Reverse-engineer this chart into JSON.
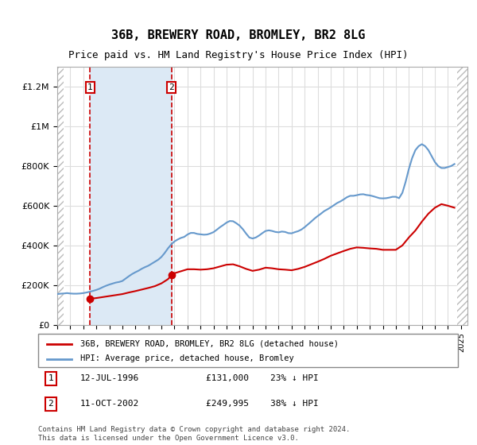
{
  "title": "36B, BREWERY ROAD, BROMLEY, BR2 8LG",
  "subtitle": "Price paid vs. HM Land Registry's House Price Index (HPI)",
  "title_fontsize": 11,
  "subtitle_fontsize": 9,
  "ylabel": "",
  "xlabel": "",
  "ylim": [
    0,
    1300000
  ],
  "xlim_start": 1994.0,
  "xlim_end": 2025.5,
  "yticks": [
    0,
    200000,
    400000,
    600000,
    800000,
    1000000,
    1200000
  ],
  "ytick_labels": [
    "£0",
    "£200K",
    "£400K",
    "£600K",
    "£800K",
    "£1M",
    "£1.2M"
  ],
  "xticks": [
    1994,
    1995,
    1996,
    1997,
    1998,
    1999,
    2000,
    2001,
    2002,
    2003,
    2004,
    2005,
    2006,
    2007,
    2008,
    2009,
    2010,
    2011,
    2012,
    2013,
    2014,
    2015,
    2016,
    2017,
    2018,
    2019,
    2020,
    2021,
    2022,
    2023,
    2024,
    2025
  ],
  "hatch_color": "#aaaaaa",
  "shaded_region_color": "#dce9f5",
  "grid_color": "#dddddd",
  "purchase1_year": 1996.53,
  "purchase1_price": 131000,
  "purchase1_label": "1",
  "purchase1_date": "12-JUL-1996",
  "purchase1_info": "£131,000    23% ↓ HPI",
  "purchase2_year": 2002.78,
  "purchase2_price": 249995,
  "purchase2_label": "2",
  "purchase2_date": "11-OCT-2002",
  "purchase2_info": "£249,995    38% ↓ HPI",
  "red_line_color": "#cc0000",
  "blue_line_color": "#6699cc",
  "legend_label_red": "36B, BREWERY ROAD, BROMLEY, BR2 8LG (detached house)",
  "legend_label_blue": "HPI: Average price, detached house, Bromley",
  "footer_text": "Contains HM Land Registry data © Crown copyright and database right 2024.\nThis data is licensed under the Open Government Licence v3.0.",
  "hpi_data": {
    "years": [
      1994.0,
      1994.25,
      1994.5,
      1994.75,
      1995.0,
      1995.25,
      1995.5,
      1995.75,
      1996.0,
      1996.25,
      1996.5,
      1996.75,
      1997.0,
      1997.25,
      1997.5,
      1997.75,
      1998.0,
      1998.25,
      1998.5,
      1998.75,
      1999.0,
      1999.25,
      1999.5,
      1999.75,
      2000.0,
      2000.25,
      2000.5,
      2000.75,
      2001.0,
      2001.25,
      2001.5,
      2001.75,
      2002.0,
      2002.25,
      2002.5,
      2002.75,
      2003.0,
      2003.25,
      2003.5,
      2003.75,
      2004.0,
      2004.25,
      2004.5,
      2004.75,
      2005.0,
      2005.25,
      2005.5,
      2005.75,
      2006.0,
      2006.25,
      2006.5,
      2006.75,
      2007.0,
      2007.25,
      2007.5,
      2007.75,
      2008.0,
      2008.25,
      2008.5,
      2008.75,
      2009.0,
      2009.25,
      2009.5,
      2009.75,
      2010.0,
      2010.25,
      2010.5,
      2010.75,
      2011.0,
      2011.25,
      2011.5,
      2011.75,
      2012.0,
      2012.25,
      2012.5,
      2012.75,
      2013.0,
      2013.25,
      2013.5,
      2013.75,
      2014.0,
      2014.25,
      2014.5,
      2014.75,
      2015.0,
      2015.25,
      2015.5,
      2015.75,
      2016.0,
      2016.25,
      2016.5,
      2016.75,
      2017.0,
      2017.25,
      2017.5,
      2017.75,
      2018.0,
      2018.25,
      2018.5,
      2018.75,
      2019.0,
      2019.25,
      2019.5,
      2019.75,
      2020.0,
      2020.25,
      2020.5,
      2020.75,
      2021.0,
      2021.25,
      2021.5,
      2021.75,
      2022.0,
      2022.25,
      2022.5,
      2022.75,
      2023.0,
      2023.25,
      2023.5,
      2023.75,
      2024.0,
      2024.25,
      2024.5
    ],
    "values": [
      155000,
      157000,
      158000,
      160000,
      158000,
      157000,
      157000,
      158000,
      160000,
      163000,
      167000,
      171000,
      176000,
      182000,
      190000,
      197000,
      203000,
      208000,
      213000,
      216000,
      221000,
      233000,
      245000,
      256000,
      265000,
      273000,
      283000,
      291000,
      298000,
      308000,
      318000,
      328000,
      342000,
      362000,
      385000,
      405000,
      420000,
      430000,
      438000,
      443000,
      455000,
      463000,
      463000,
      458000,
      456000,
      454000,
      455000,
      460000,
      467000,
      479000,
      492000,
      503000,
      515000,
      523000,
      522000,
      512000,
      500000,
      482000,
      460000,
      440000,
      435000,
      440000,
      450000,
      462000,
      473000,
      476000,
      473000,
      468000,
      466000,
      470000,
      468000,
      462000,
      461000,
      467000,
      472000,
      480000,
      492000,
      506000,
      520000,
      535000,
      548000,
      560000,
      573000,
      582000,
      592000,
      603000,
      614000,
      622000,
      632000,
      643000,
      650000,
      650000,
      653000,
      657000,
      658000,
      654000,
      652000,
      648000,
      643000,
      638000,
      637000,
      638000,
      641000,
      645000,
      645000,
      638000,
      665000,
      720000,
      785000,
      840000,
      880000,
      900000,
      910000,
      900000,
      880000,
      850000,
      820000,
      800000,
      790000,
      790000,
      795000,
      800000,
      810000
    ]
  },
  "red_data": {
    "years": [
      1996.53,
      1996.6,
      1997.0,
      1997.5,
      1998.0,
      1998.5,
      1999.0,
      1999.5,
      2000.0,
      2000.5,
      2001.0,
      2001.5,
      2002.0,
      2002.5,
      2002.78,
      2003.0,
      2003.5,
      2004.0,
      2004.5,
      2005.0,
      2005.5,
      2006.0,
      2006.5,
      2007.0,
      2007.5,
      2008.0,
      2008.5,
      2009.0,
      2009.5,
      2010.0,
      2010.5,
      2011.0,
      2011.5,
      2012.0,
      2012.5,
      2013.0,
      2013.5,
      2014.0,
      2014.5,
      2015.0,
      2015.5,
      2016.0,
      2016.5,
      2017.0,
      2017.5,
      2018.0,
      2018.5,
      2019.0,
      2019.5,
      2020.0,
      2020.5,
      2021.0,
      2021.5,
      2022.0,
      2022.5,
      2023.0,
      2023.5,
      2024.0,
      2024.5
    ],
    "values": [
      131000,
      132000,
      135000,
      140000,
      145000,
      150000,
      155000,
      163000,
      170000,
      178000,
      186000,
      195000,
      209000,
      230000,
      249995,
      260000,
      270000,
      280000,
      280000,
      278000,
      280000,
      285000,
      294000,
      303000,
      305000,
      295000,
      282000,
      272000,
      278000,
      288000,
      285000,
      280000,
      278000,
      275000,
      282000,
      292000,
      305000,
      318000,
      332000,
      348000,
      360000,
      372000,
      383000,
      390000,
      388000,
      385000,
      383000,
      378000,
      378000,
      378000,
      400000,
      440000,
      475000,
      520000,
      560000,
      590000,
      608000,
      600000,
      590000
    ]
  }
}
